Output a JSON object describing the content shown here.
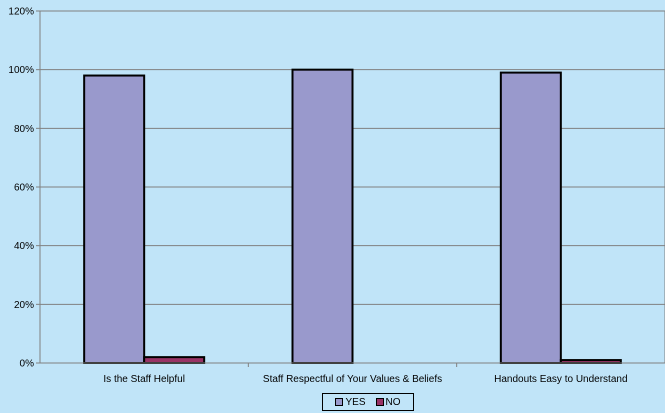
{
  "chart_data": {
    "type": "bar",
    "categories": [
      "Is the Staff Helpful",
      "Staff Respectful of Your Values & Beliefs",
      "Handouts Easy to Understand"
    ],
    "series": [
      {
        "name": "YES",
        "values": [
          98,
          100,
          99
        ],
        "color": "#9999cc"
      },
      {
        "name": "NO",
        "values": [
          2,
          0,
          1
        ],
        "color": "#993366"
      }
    ],
    "y_ticks": [
      "0%",
      "20%",
      "40%",
      "60%",
      "80%",
      "100%",
      "120%"
    ],
    "ylim": [
      0,
      120
    ],
    "grid": true,
    "legend_position": "bottom-center"
  }
}
